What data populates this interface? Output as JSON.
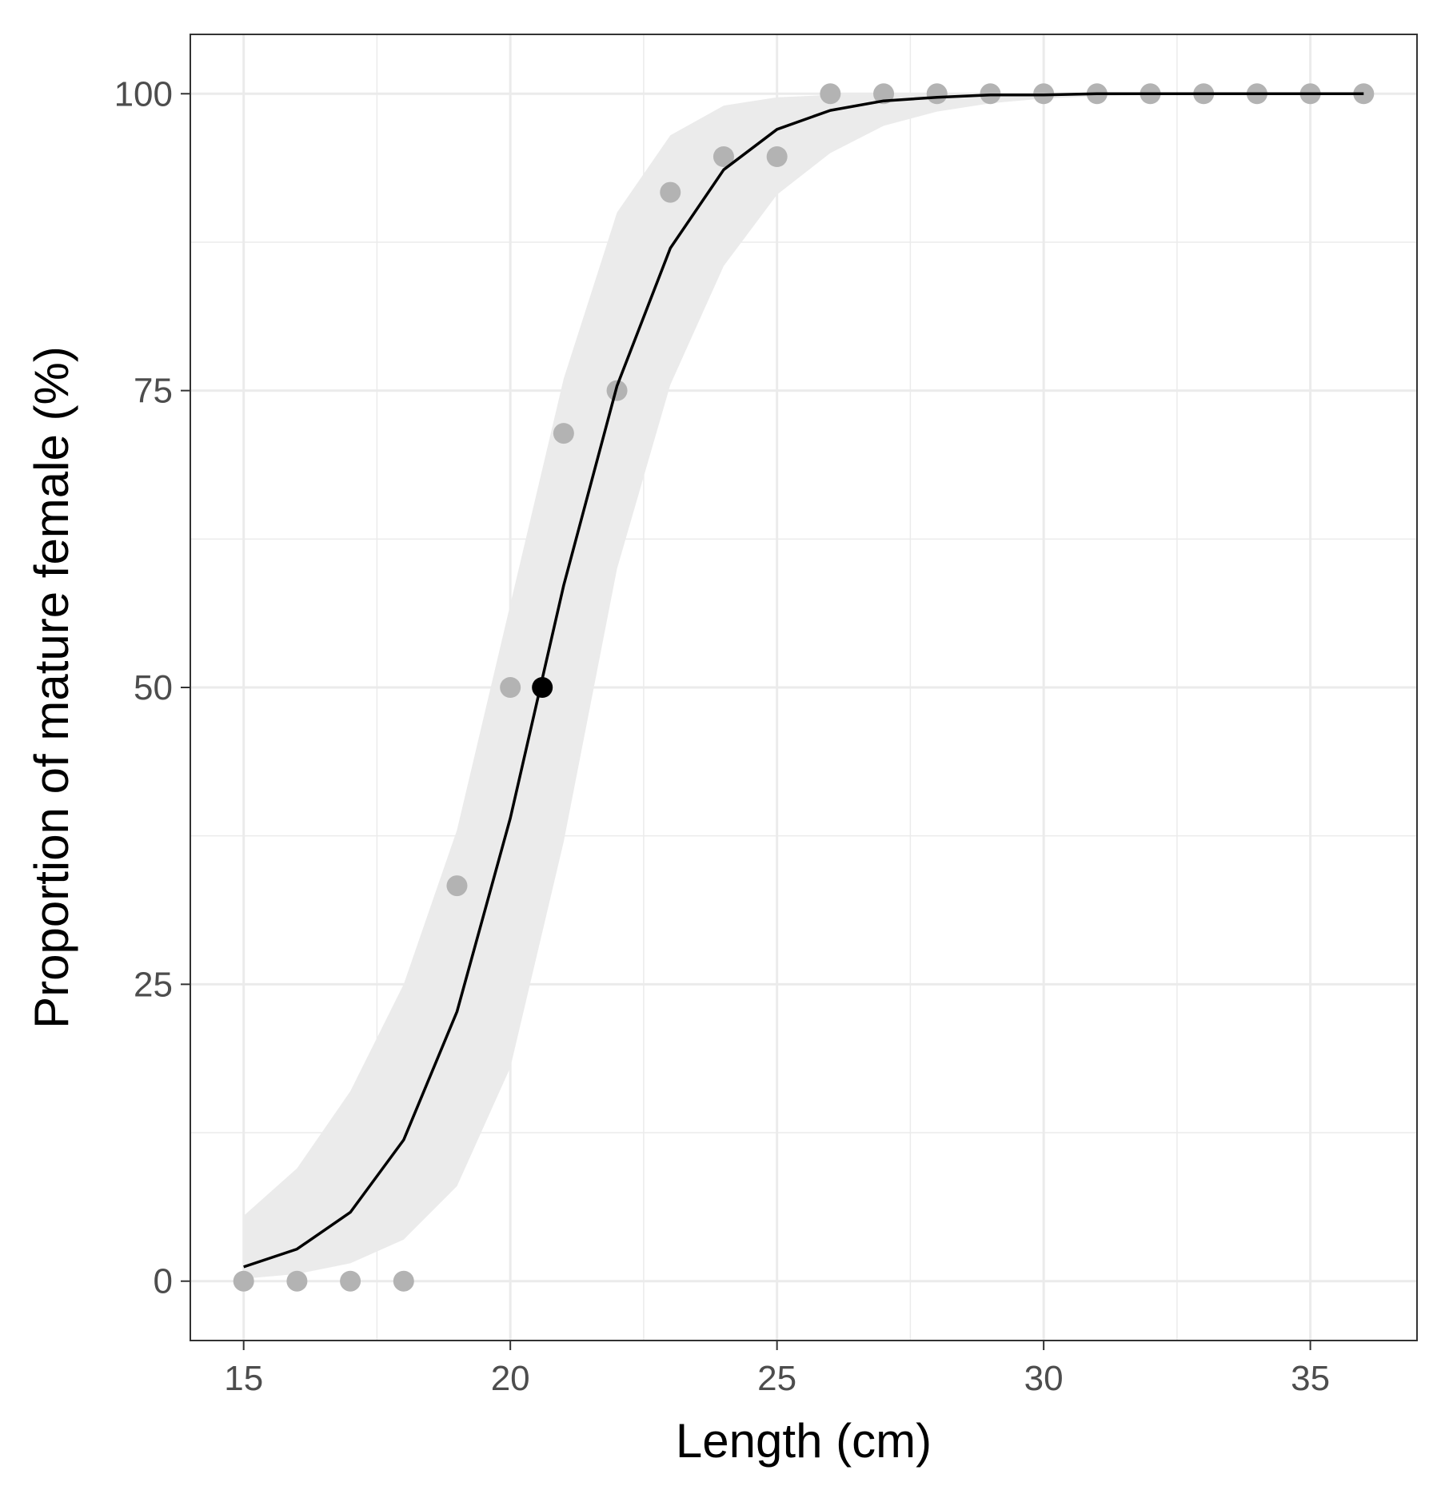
{
  "chart_data": {
    "type": "line",
    "xlabel": "Length (cm)",
    "ylabel": "Proportion of mature female (%)",
    "xlim": [
      14,
      37
    ],
    "ylim": [
      -5,
      105
    ],
    "x_ticks": [
      15,
      20,
      25,
      30,
      35
    ],
    "y_ticks": [
      0,
      25,
      50,
      75,
      100
    ],
    "grid": true,
    "observed": {
      "x": [
        15,
        16,
        17,
        18,
        19,
        20,
        21,
        22,
        23,
        24,
        25,
        26,
        27,
        28,
        29,
        30,
        31,
        32,
        33,
        34,
        35,
        36
      ],
      "y": [
        0,
        0,
        0,
        0,
        33.3,
        50,
        71.4,
        75,
        91.7,
        94.7,
        94.7,
        100,
        100,
        100,
        100,
        100,
        100,
        100,
        100,
        100,
        100,
        100
      ]
    },
    "fitted": {
      "x": [
        15,
        16,
        17,
        18,
        19,
        20,
        21,
        22,
        23,
        24,
        25,
        26,
        27,
        28,
        29,
        30,
        31,
        32,
        33,
        34,
        35,
        36
      ],
      "y": [
        1.2,
        2.7,
        5.8,
        11.9,
        22.7,
        39.0,
        58.6,
        75.4,
        87.0,
        93.6,
        97.0,
        98.6,
        99.4,
        99.7,
        99.9,
        99.9,
        100,
        100,
        100,
        100,
        100,
        100
      ],
      "ci_lower": [
        0.2,
        0.6,
        1.5,
        3.5,
        8.0,
        18.0,
        37.0,
        60.0,
        75.5,
        85.5,
        91.5,
        95.0,
        97.3,
        98.5,
        99.2,
        99.6,
        99.8,
        99.9,
        100,
        100,
        100,
        100
      ],
      "ci_upper": [
        5.5,
        9.5,
        16.0,
        25.0,
        38.0,
        57.0,
        76.0,
        90.0,
        96.5,
        99.0,
        99.7,
        99.9,
        100,
        100,
        100,
        100,
        100,
        100,
        100,
        100,
        100,
        100
      ]
    },
    "l50": {
      "x": 20.6,
      "y": 50
    },
    "colors": {
      "observed_points": "#b3b3b3",
      "fit_line": "#000000",
      "ci_band": "#ebebeb",
      "l50_point": "#000000",
      "grid": "#ebebeb",
      "panel_border": "#333333"
    }
  }
}
